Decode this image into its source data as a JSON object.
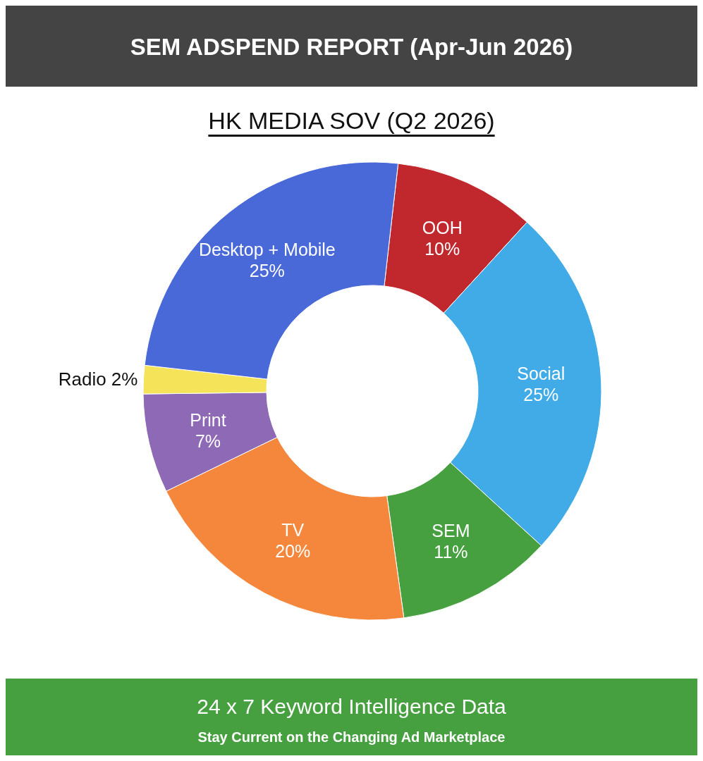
{
  "chart_data": {
    "type": "donut",
    "title": "SEM ADSPEND REPORT (Apr-Jun 2026)",
    "subtitle": "HK MEDIA SOV (Q2 2026)",
    "categories": [
      "OOH",
      "Social",
      "SEM",
      "TV",
      "Print",
      "Radio",
      "Desktop + Mobile"
    ],
    "values": [
      10,
      25,
      11,
      20,
      7,
      2,
      25
    ],
    "value_labels": [
      "10%",
      "25%",
      "11%",
      "20%",
      "7%",
      "2%",
      "25%"
    ],
    "colors": [
      "#c0282d",
      "#41abe8",
      "#46a040",
      "#f4873b",
      "#8e69b5",
      "#f5e35a",
      "#4a69d9"
    ],
    "legend": false,
    "annotations": [
      "24 x 7 Keyword Intelligence Data",
      "Stay Current on the Changing Ad Marketplace"
    ]
  }
}
